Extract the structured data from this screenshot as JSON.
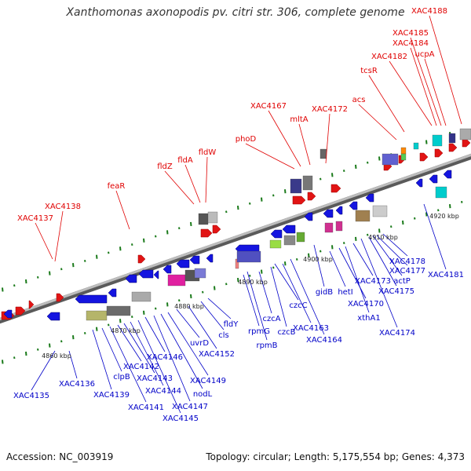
{
  "header": {
    "title": "Xanthomonas axonopodis pv. citri str. 306, complete genome"
  },
  "footer": {
    "accession": "Accession: NC_003919",
    "summary": "Topology: circular; Length: 5,175,554 bp; Genes: 4,373"
  },
  "colors": {
    "backbone": "#8a8a8a",
    "forward_gene": "#e11414",
    "reverse_gene": "#1414e0",
    "forward_label": "#e00000",
    "reverse_label": "#0000c8",
    "tick": "#1a7a1a"
  },
  "kbp_labels": [
    "4860 kbp",
    "4870 kbp",
    "4880 kbp",
    "4890 kbp",
    "4900 kbp",
    "4910 kbp",
    "4920 kbp"
  ],
  "forward_labels": [
    "XAC4137",
    "XAC4138",
    "feaR",
    "fldZ",
    "fldA",
    "fldW",
    "phoD",
    "XAC4167",
    "mltA",
    "XAC4172",
    "acs",
    "tcsR",
    "XAC4182",
    "XAC4184",
    "XAC4185",
    "ucpA",
    "XAC4188"
  ],
  "reverse_labels": [
    "XAC4135",
    "XAC4136",
    "XAC4139",
    "clpB",
    "XAC4141",
    "XAC4142",
    "XAC4143",
    "XAC4144",
    "XAC4145",
    "XAC4146",
    "XAC4147",
    "nodL",
    "XAC4149",
    "uvrD",
    "XAC4152",
    "cls",
    "fldY",
    "rpmG",
    "rpmB",
    "czcA",
    "czcB",
    "czcC",
    "XAC4163",
    "XAC4164",
    "gidB",
    "hetI",
    "XAC4170",
    "xthA1",
    "XAC4173",
    "XAC4174",
    "XAC4175",
    "actP",
    "XAC4177",
    "XAC4178",
    "XAC4181"
  ]
}
